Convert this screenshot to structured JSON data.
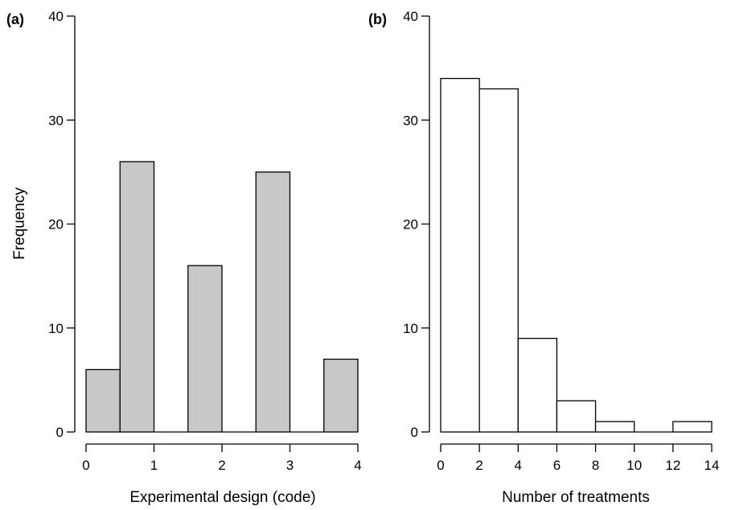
{
  "chart_data": [
    {
      "type": "bar",
      "panel_label": "(a)",
      "xlabel": "Experimental design (code)",
      "ylabel": "Frequency",
      "bar_color": "#c8c8c8",
      "bins": [
        [
          0,
          0.5
        ],
        [
          0.5,
          1
        ],
        [
          1,
          1.5
        ],
        [
          1.5,
          2
        ],
        [
          2,
          2.5
        ],
        [
          2.5,
          3
        ],
        [
          3,
          3.5
        ],
        [
          3.5,
          4
        ]
      ],
      "values": [
        6,
        26,
        0,
        16,
        0,
        25,
        0,
        7
      ],
      "xlim": [
        0,
        4
      ],
      "ylim": [
        0,
        40
      ],
      "xticks": [
        "0",
        "1",
        "2",
        "3",
        "4"
      ],
      "yticks": [
        "0",
        "10",
        "20",
        "30",
        "40"
      ],
      "grid": false
    },
    {
      "type": "bar",
      "panel_label": "(b)",
      "xlabel": "Number of treatments",
      "ylabel": "",
      "bar_color": "#ffffff",
      "bins": [
        [
          0,
          2
        ],
        [
          2,
          4
        ],
        [
          4,
          6
        ],
        [
          6,
          8
        ],
        [
          8,
          10
        ],
        [
          10,
          12
        ],
        [
          12,
          14
        ]
      ],
      "values": [
        34,
        33,
        9,
        3,
        1,
        0,
        1
      ],
      "xlim": [
        0,
        14
      ],
      "ylim": [
        0,
        40
      ],
      "xticks": [
        "0",
        "2",
        "4",
        "6",
        "8",
        "10",
        "12",
        "14"
      ],
      "yticks": [
        "0",
        "10",
        "20",
        "30",
        "40"
      ],
      "grid": false
    }
  ]
}
